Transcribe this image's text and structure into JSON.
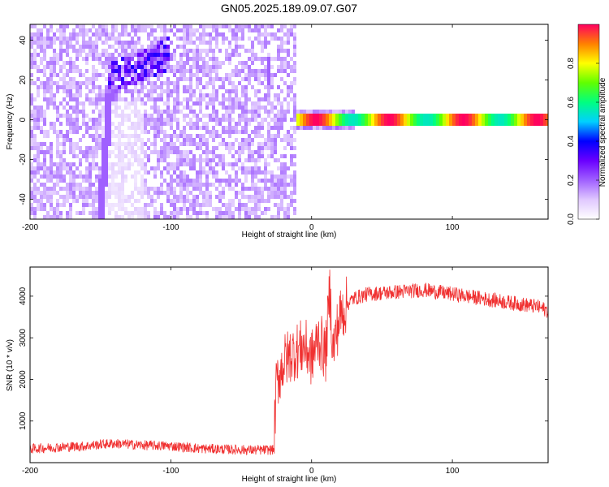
{
  "chart_data": [
    {
      "type": "heatmap",
      "title": "GN05.2025.189.09.07.G07",
      "xlabel": "Height of straight line (km)",
      "ylabel": "Frequency (Hz)",
      "xlim": [
        -200,
        168
      ],
      "ylim": [
        -50,
        48
      ],
      "xticks": [
        -200,
        -100,
        0,
        100
      ],
      "yticks": [
        40,
        20,
        0,
        -20,
        -40
      ],
      "colorbar": {
        "label": "Normalized spectral amplitude",
        "range": [
          0,
          1
        ],
        "ticks": [
          "0.0",
          "0.2",
          "0.4",
          "0.6",
          "0.8"
        ],
        "colors": [
          "#ffffff",
          "#e0c8ff",
          "#a060ff",
          "#6a00ff",
          "#0000ff",
          "#00d0ff",
          "#00ff80",
          "#60ff00",
          "#ffff00",
          "#ff8000",
          "#ff0060"
        ]
      },
      "features": [
        {
          "name": "noise region",
          "x_range": [
            -200,
            -10
          ],
          "amplitude": 0.15
        },
        {
          "name": "rising streak",
          "x": [
            -150,
            -143
          ],
          "y": [
            -50,
            15
          ],
          "amplitude": 0.2
        },
        {
          "name": "cluster",
          "x_range": [
            -145,
            -100
          ],
          "y_range": [
            15,
            40
          ],
          "amplitude": 0.25
        },
        {
          "name": "narrow line",
          "x": -30,
          "y_range": [
            17,
            32
          ],
          "amplitude": 0.2
        },
        {
          "name": "signal band",
          "x_range": [
            -10,
            168
          ],
          "y": 0,
          "peak_amplitude": 1.0
        }
      ]
    },
    {
      "type": "line",
      "xlabel": "Height of straight line (km)",
      "ylabel": "SNR (10 * v/v)",
      "xlim": [
        -200,
        168
      ],
      "ylim": [
        0,
        4700
      ],
      "xticks": [
        -200,
        -100,
        0,
        100
      ],
      "yticks": [
        1000,
        2000,
        3000,
        4000
      ],
      "color": "#f03030",
      "x": [
        -200,
        -180,
        -160,
        -150,
        -140,
        -120,
        -100,
        -80,
        -60,
        -40,
        -27,
        -25,
        -20,
        -15,
        -10,
        -5,
        0,
        5,
        10,
        13,
        15,
        20,
        25,
        30,
        40,
        60,
        80,
        100,
        120,
        140,
        160,
        168
      ],
      "y": [
        330,
        370,
        400,
        440,
        460,
        420,
        400,
        340,
        320,
        300,
        310,
        1900,
        2400,
        2600,
        2700,
        2800,
        2500,
        3000,
        2600,
        4200,
        2700,
        3500,
        3800,
        3950,
        4050,
        4100,
        4150,
        4050,
        3950,
        3850,
        3750,
        3650
      ]
    }
  ]
}
